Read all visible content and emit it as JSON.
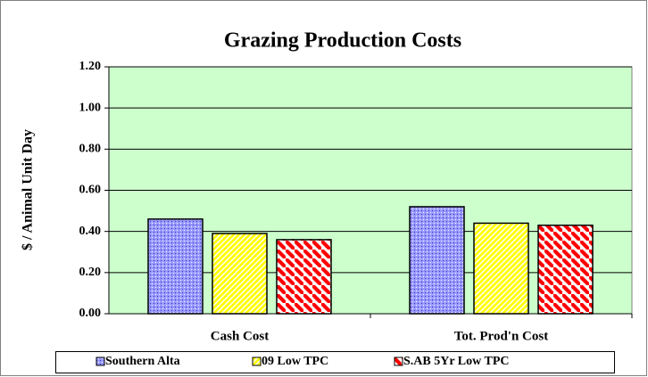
{
  "chart_data": {
    "type": "bar",
    "title": "Grazing Production Costs",
    "ylabel": "$ / Animal Unit Day",
    "categories": [
      "Cash Cost",
      "Tot. Prod'n Cost"
    ],
    "series": [
      {
        "name": "Southern Alta",
        "color": "#9999ff",
        "values": [
          0.46,
          0.52
        ]
      },
      {
        "name": "09 Low TPC",
        "color": "#ffff00",
        "values": [
          0.39,
          0.44
        ]
      },
      {
        "name": "S.AB 5Yr Low TPC",
        "color": "#ff0000",
        "values": [
          0.36,
          0.43
        ]
      }
    ],
    "ylim": [
      0,
      1.2
    ],
    "yticks": [
      {
        "value": 0,
        "label": "0.00"
      },
      {
        "value": 0.2,
        "label": "0.20"
      },
      {
        "value": 0.4,
        "label": "0.40"
      },
      {
        "value": 0.6,
        "label": "0.60"
      },
      {
        "value": 0.8,
        "label": "0.80"
      },
      {
        "value": 1.0,
        "label": "1.00"
      },
      {
        "value": 1.2,
        "label": "1.20"
      }
    ],
    "grid": true,
    "plot_background": "#ccffcc",
    "legend": "bottom"
  }
}
